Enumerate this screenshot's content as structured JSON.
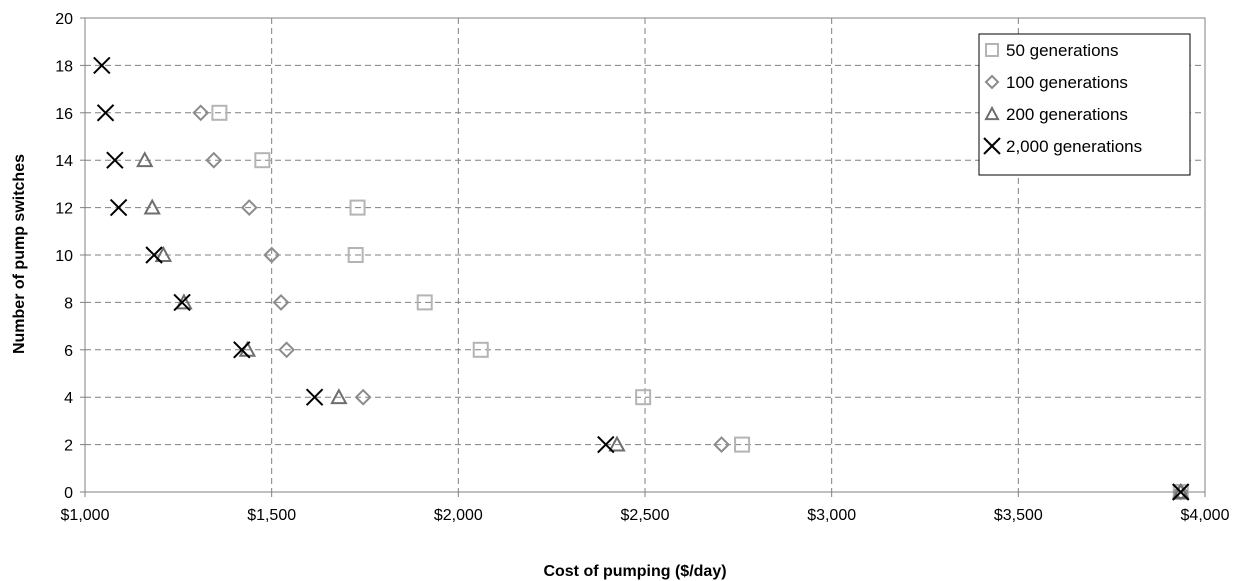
{
  "chart_data": {
    "type": "scatter",
    "xlabel": "Cost of pumping ($/day)",
    "ylabel": "Number of pump switches",
    "xlim": [
      1000,
      4000
    ],
    "ylim": [
      0,
      20
    ],
    "x_ticks": [
      1000,
      1500,
      2000,
      2500,
      3000,
      3500,
      4000
    ],
    "x_tick_labels": [
      "$1,000",
      "$1,500",
      "$2,000",
      "$2,500",
      "$3,000",
      "$3,500",
      "$4,000"
    ],
    "y_ticks": [
      0,
      2,
      4,
      6,
      8,
      10,
      12,
      14,
      16,
      18,
      20
    ],
    "y_tick_labels": [
      "0",
      "2",
      "4",
      "6",
      "8",
      "10",
      "12",
      "14",
      "16",
      "18",
      "20"
    ],
    "grid": true,
    "legend_position": "top-right",
    "series": [
      {
        "name": "50 generations",
        "marker": "square",
        "color": "#b4b4b4",
        "points": [
          {
            "x": 3935,
            "y": 0
          },
          {
            "x": 2760,
            "y": 2
          },
          {
            "x": 2495,
            "y": 4
          },
          {
            "x": 2060,
            "y": 6
          },
          {
            "x": 1910,
            "y": 8
          },
          {
            "x": 1725,
            "y": 10
          },
          {
            "x": 1730,
            "y": 12
          },
          {
            "x": 1475,
            "y": 14
          },
          {
            "x": 1360,
            "y": 16
          }
        ]
      },
      {
        "name": "100 generations",
        "marker": "diamond",
        "color": "#8c8c8c",
        "points": [
          {
            "x": 3935,
            "y": 0
          },
          {
            "x": 2705,
            "y": 2
          },
          {
            "x": 1745,
            "y": 4
          },
          {
            "x": 1540,
            "y": 6
          },
          {
            "x": 1525,
            "y": 8
          },
          {
            "x": 1500,
            "y": 10
          },
          {
            "x": 1440,
            "y": 12
          },
          {
            "x": 1345,
            "y": 14
          },
          {
            "x": 1310,
            "y": 16
          }
        ]
      },
      {
        "name": "200 generations",
        "marker": "triangle",
        "color": "#6e6e6e",
        "points": [
          {
            "x": 3935,
            "y": 0
          },
          {
            "x": 2425,
            "y": 2
          },
          {
            "x": 1680,
            "y": 4
          },
          {
            "x": 1435,
            "y": 6
          },
          {
            "x": 1265,
            "y": 8
          },
          {
            "x": 1210,
            "y": 10
          },
          {
            "x": 1180,
            "y": 12
          },
          {
            "x": 1160,
            "y": 14
          }
        ]
      },
      {
        "name": "2,000 generations",
        "marker": "x",
        "color": "#000000",
        "points": [
          {
            "x": 3935,
            "y": 0
          },
          {
            "x": 2395,
            "y": 2
          },
          {
            "x": 1615,
            "y": 4
          },
          {
            "x": 1420,
            "y": 6
          },
          {
            "x": 1260,
            "y": 8
          },
          {
            "x": 1185,
            "y": 10
          },
          {
            "x": 1090,
            "y": 12
          },
          {
            "x": 1080,
            "y": 14
          },
          {
            "x": 1055,
            "y": 16
          },
          {
            "x": 1045,
            "y": 18
          }
        ]
      }
    ]
  }
}
